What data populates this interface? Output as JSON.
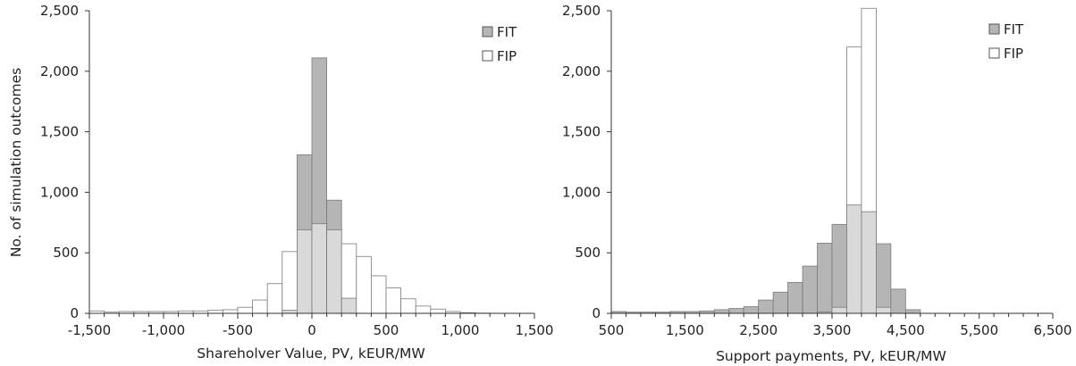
{
  "shared": {
    "ylabel": "No. of simulation outcomes",
    "colors": {
      "fit": "#b5b5b5",
      "fip": "#ffffff",
      "overlap": "#d9d9d9",
      "edge": "#7a7a7a"
    }
  },
  "chart_data": [
    {
      "type": "bar",
      "title": "",
      "xlabel": "Shareholver Value, PV, kEUR/MW",
      "ylabel": "No. of simulation outcomes",
      "xlim": [
        -1500,
        1500
      ],
      "ylim": [
        0,
        2500
      ],
      "bin_width": 100,
      "xticks": [
        "-1,500",
        "-1,000",
        "-500",
        "0",
        "500",
        "1,000",
        "1,500"
      ],
      "yticks": [
        "0",
        "500",
        "1,000",
        "1,500",
        "2,000",
        "2,500"
      ],
      "legend_position": "top-right",
      "series": [
        {
          "name": "FIT",
          "bin_starts": [
            -200,
            -100,
            0,
            100,
            200
          ],
          "values": [
            25,
            1310,
            2110,
            935,
            125
          ]
        },
        {
          "name": "FIP",
          "bin_starts": [
            -1500,
            -1400,
            -1300,
            -1200,
            -1100,
            -1000,
            -900,
            -800,
            -700,
            -600,
            -500,
            -400,
            -300,
            -200,
            -100,
            0,
            100,
            200,
            300,
            400,
            500,
            600,
            700,
            800,
            900,
            1000,
            1100
          ],
          "values": [
            20,
            10,
            15,
            15,
            15,
            15,
            20,
            20,
            25,
            30,
            50,
            110,
            245,
            510,
            690,
            740,
            690,
            575,
            470,
            310,
            210,
            120,
            60,
            35,
            15,
            5,
            2
          ]
        }
      ]
    },
    {
      "type": "bar",
      "title": "",
      "xlabel": "Support payments, PV, kEUR/MW",
      "ylabel": "No. of simulation outcomes",
      "xlim": [
        500,
        6500
      ],
      "ylim": [
        0,
        2500
      ],
      "bin_width": 200,
      "xticks": [
        "500",
        "1,500",
        "2,500",
        "3,500",
        "4,500",
        "5,500",
        "6,500"
      ],
      "yticks": [
        "0",
        "500",
        "1,000",
        "1,500",
        "2,000",
        "2,500"
      ],
      "legend_position": "top-right",
      "series": [
        {
          "name": "FIT",
          "bin_starts": [
            500,
            700,
            900,
            1100,
            1300,
            1500,
            1700,
            1900,
            2100,
            2300,
            2500,
            2700,
            2900,
            3100,
            3300,
            3500,
            3700,
            3900,
            4100,
            4300,
            4500
          ],
          "values": [
            15,
            10,
            10,
            10,
            15,
            15,
            20,
            30,
            40,
            55,
            110,
            175,
            255,
            390,
            580,
            735,
            895,
            840,
            575,
            200,
            30
          ]
        },
        {
          "name": "FIP",
          "bin_starts": [
            3300,
            3500,
            3700,
            3900,
            4100
          ],
          "values": [
            10,
            50,
            2200,
            2520,
            50
          ]
        }
      ]
    }
  ]
}
